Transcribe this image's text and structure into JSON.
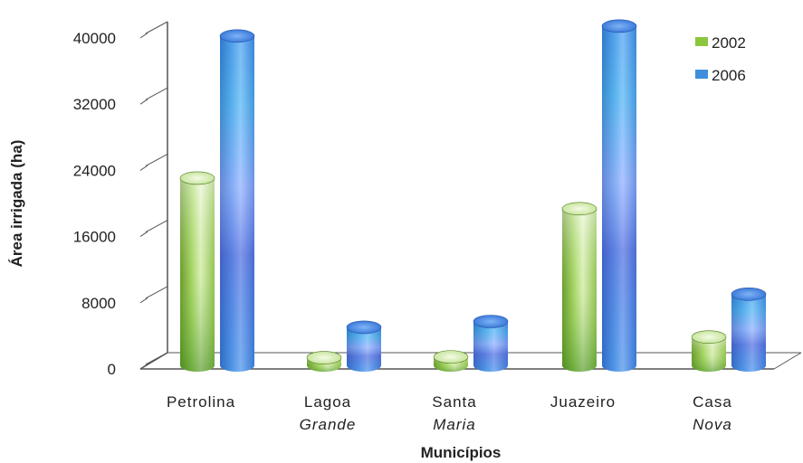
{
  "chart_data": {
    "type": "bar",
    "categories": [
      {
        "line1": "Petrolina",
        "line2": ""
      },
      {
        "line1": "Lagoa",
        "line2": "Grande"
      },
      {
        "line1": "Santa",
        "line2": "Maria"
      },
      {
        "line1": "Juazeiro",
        "line2": ""
      },
      {
        "line1": "Casa",
        "line2": "Nova"
      }
    ],
    "series": [
      {
        "name": "2002",
        "values": [
          23500,
          1800,
          1900,
          19800,
          4300
        ]
      },
      {
        "name": "2006",
        "values": [
          39800,
          4600,
          5300,
          41000,
          8600
        ]
      }
    ],
    "xlabel": "Municípios",
    "ylabel": "Área irrigada (ha)",
    "ylim": [
      0,
      40000
    ],
    "yticks": [
      0,
      8000,
      16000,
      24000,
      32000,
      40000
    ],
    "grid": false,
    "legend_position": "top-right",
    "three_d": true,
    "colors": {
      "2002": "#8cc63f",
      "2006": "#3f8fdc"
    }
  }
}
